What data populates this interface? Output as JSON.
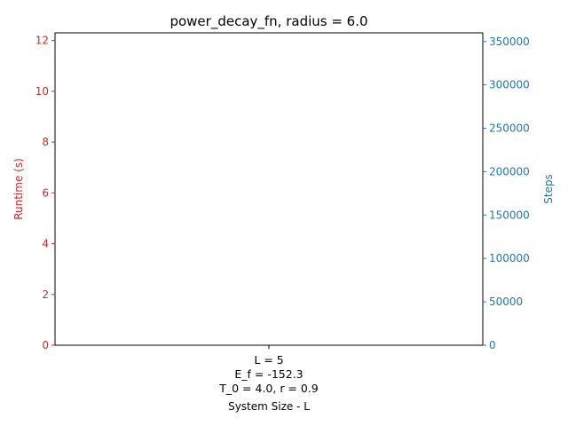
{
  "chart_data": {
    "type": "bar",
    "title": "power_decay_fn, radius = 6.0",
    "xlabel": "System Size - L",
    "categories": [
      "L = 5\nE_f = -152.3\nT_0 = 4.0, r = 0.9"
    ],
    "y_left": {
      "label": "Runtime (s)",
      "ylim": [
        0,
        12.3
      ],
      "ticks": [
        0,
        2,
        4,
        6,
        8,
        10,
        12
      ],
      "color": "#d62728"
    },
    "y_right": {
      "label": "Steps",
      "ylim": [
        0,
        360000
      ],
      "ticks": [
        0,
        50000,
        100000,
        150000,
        200000,
        250000,
        300000,
        350000
      ],
      "color": "#1f77b4"
    },
    "series": [],
    "grid": false,
    "legend": "none"
  }
}
